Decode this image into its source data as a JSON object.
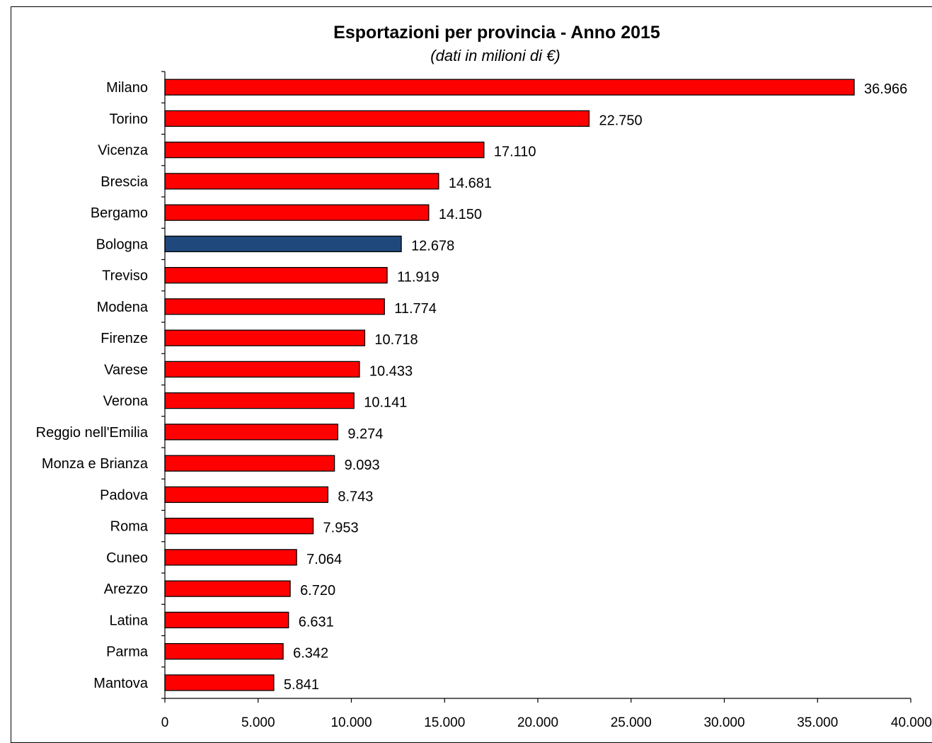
{
  "chart_data": {
    "type": "bar",
    "orientation": "horizontal",
    "title": "Esportazioni per provincia - Anno  2015",
    "subtitle": "(dati in milioni di €)",
    "categories": [
      "Milano",
      "Torino",
      "Vicenza",
      "Brescia",
      "Bergamo",
      "Bologna",
      "Treviso",
      "Modena",
      "Firenze",
      "Varese",
      "Verona",
      "Reggio nell'Emilia",
      "Monza e Brianza",
      "Padova",
      "Roma",
      "Cuneo",
      "Arezzo",
      "Latina",
      "Parma",
      "Mantova"
    ],
    "values": [
      36966,
      22750,
      17110,
      14681,
      14150,
      12678,
      11919,
      11774,
      10718,
      10433,
      10141,
      9274,
      9093,
      8743,
      7953,
      7064,
      6720,
      6631,
      6342,
      5841
    ],
    "value_labels": [
      "36.966",
      "22.750",
      "17.110",
      "14.681",
      "14.150",
      "12.678",
      "11.919",
      "11.774",
      "10.718",
      "10.433",
      "10.141",
      "9.274",
      "9.093",
      "8.743",
      "7.953",
      "7.064",
      "6.720",
      "6.631",
      "6.342",
      "5.841"
    ],
    "highlight_category": "Bologna",
    "colors": {
      "bar": "#ff0000",
      "highlight": "#1f497d",
      "bar_stroke": "#000000"
    },
    "xlim": [
      0,
      40000
    ],
    "x_ticks": [
      0,
      5000,
      10000,
      15000,
      20000,
      25000,
      30000,
      35000,
      40000
    ],
    "x_tick_labels": [
      "0",
      "5.000",
      "10.000",
      "15.000",
      "20.000",
      "25.000",
      "30.000",
      "35.000",
      "40.000"
    ],
    "grid": false,
    "legend": "none"
  }
}
